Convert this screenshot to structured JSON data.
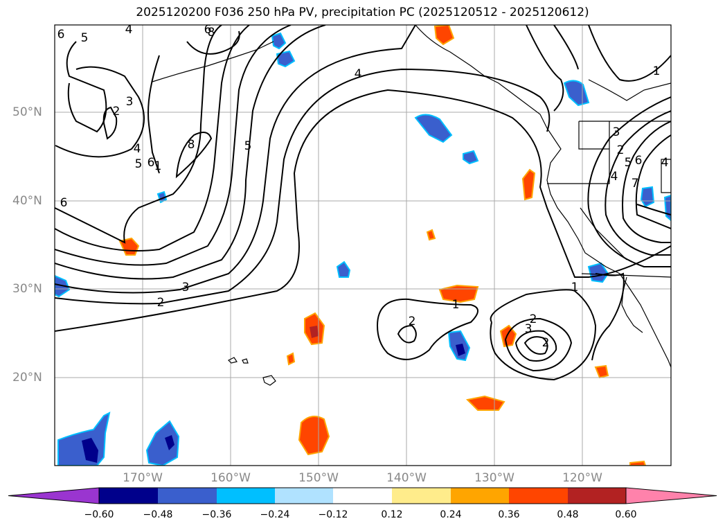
{
  "title": "2025120200 F036 250 hPa PV, precipitation PC (2025120512 - 2025120612)",
  "lon_labels": [
    "170°W",
    "160°W",
    "150°W",
    "140°W",
    "130°W",
    "120°W"
  ],
  "lat_labels": [
    "50°N",
    "40°N",
    "30°N",
    "20°N"
  ],
  "colorbar": {
    "ticks": [
      "−0.60",
      "−0.48",
      "−0.36",
      "−0.24",
      "−0.12",
      "0.12",
      "0.24",
      "0.36",
      "0.48",
      "0.60"
    ],
    "colors": [
      "#9a35d0",
      "#00008b",
      "#3a5fcd",
      "#00bfff",
      "#b0e2ff",
      "#ffffff",
      "#ffec8b",
      "#ffa500",
      "#ff4500",
      "#b22222",
      "#ff82ab"
    ]
  },
  "contour_labels": [
    "6",
    "5",
    "4",
    "6",
    "8",
    "3",
    "2",
    "4",
    "5",
    "6",
    "1",
    "8",
    "5",
    "4",
    "6",
    "3",
    "2",
    "2",
    "1",
    "2",
    "3",
    "2",
    "1",
    "4",
    "1",
    "5",
    "6",
    "7",
    "4",
    "2",
    "3"
  ],
  "colors": {
    "pv_contour": "#000000",
    "coast": "#000000",
    "grid": "#a9a9a9"
  }
}
